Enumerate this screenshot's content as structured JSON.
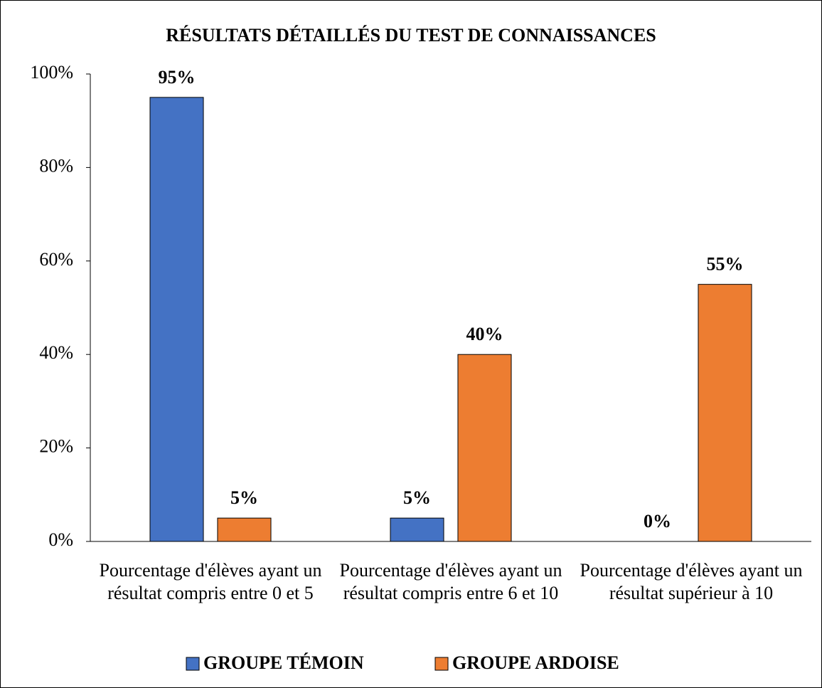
{
  "chart_data": {
    "type": "bar",
    "title": "RÉSULTATS DÉTAILLÉS DU TEST DE CONNAISSANCES",
    "categories": [
      "Pourcentage d'élèves ayant un résultat compris entre 0 et 5",
      "Pourcentage d'élèves ayant un résultat compris entre 6 et 10",
      "Pourcentage d'élèves ayant un résultat supérieur à 10"
    ],
    "series": [
      {
        "name": "GROUPE TÉMOIN",
        "color": "#4472c4",
        "values": [
          95,
          5,
          0
        ],
        "value_labels": [
          "95%",
          "5%",
          "0%"
        ]
      },
      {
        "name": "GROUPE ARDOISE",
        "color": "#ed7d31",
        "values": [
          5,
          40,
          55
        ],
        "value_labels": [
          "5%",
          "40%",
          "55%"
        ]
      }
    ],
    "ylim": [
      0,
      100
    ],
    "yticks": [
      {
        "value": 0,
        "label": "0%"
      },
      {
        "value": 20,
        "label": "20%"
      },
      {
        "value": 40,
        "label": "40%"
      },
      {
        "value": 60,
        "label": "60%"
      },
      {
        "value": 80,
        "label": "80%"
      },
      {
        "value": 100,
        "label": "100%"
      }
    ],
    "grid": false,
    "legend": "bottom"
  }
}
